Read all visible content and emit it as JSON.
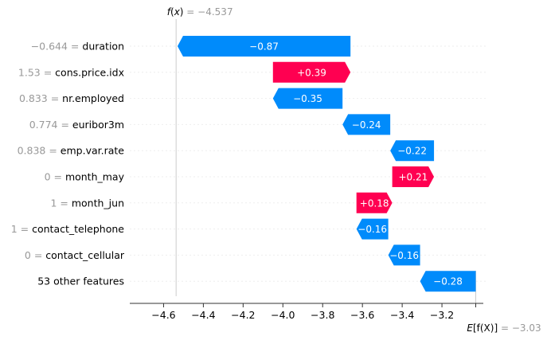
{
  "chart_data": {
    "type": "waterfall",
    "fx": {
      "prefix": "f",
      "arg": "x",
      "rest": " = −4.537",
      "value": -4.537
    },
    "efx": {
      "prefix": "E",
      "inner": "[f(X)]",
      "rest": " = −3.03",
      "value": -3.03
    },
    "rows": [
      {
        "value_label": "−0.644 = ",
        "feature": "duration",
        "contribution": -0.87,
        "contribution_label": "−0.87",
        "start": -3.66
      },
      {
        "value_label": "1.53 = ",
        "feature": "cons.price.idx",
        "contribution": 0.39,
        "contribution_label": "+0.39",
        "start": -4.05
      },
      {
        "value_label": "0.833 = ",
        "feature": "nr.employed",
        "contribution": -0.35,
        "contribution_label": "−0.35",
        "start": -3.7
      },
      {
        "value_label": "0.774 = ",
        "feature": "euribor3m",
        "contribution": -0.24,
        "contribution_label": "−0.24",
        "start": -3.46
      },
      {
        "value_label": "0.838 = ",
        "feature": "emp.var.rate",
        "contribution": -0.22,
        "contribution_label": "−0.22",
        "start": -3.24
      },
      {
        "value_label": "0 = ",
        "feature": "month_may",
        "contribution": 0.21,
        "contribution_label": "+0.21",
        "start": -3.45
      },
      {
        "value_label": "1 = ",
        "feature": "month_jun",
        "contribution": 0.18,
        "contribution_label": "+0.18",
        "start": -3.63
      },
      {
        "value_label": "1 = ",
        "feature": "contact_telephone",
        "contribution": -0.16,
        "contribution_label": "−0.16",
        "start": -3.47
      },
      {
        "value_label": "0 = ",
        "feature": "contact_cellular",
        "contribution": -0.16,
        "contribution_label": "−0.16",
        "start": -3.31
      },
      {
        "value_label": "",
        "feature": "53 other features",
        "contribution": -0.28,
        "contribution_label": "−0.28",
        "start": -3.03
      }
    ],
    "x_ticks": [
      -4.6,
      -4.4,
      -4.2,
      -4.0,
      -3.8,
      -3.6,
      -3.4,
      -3.2
    ],
    "x_tick_labels": [
      "−4.6",
      "−4.4",
      "−4.2",
      "−4.0",
      "−3.8",
      "−3.6",
      "−3.4",
      "−3.2"
    ],
    "xlim": [
      -4.77,
      -2.98
    ],
    "colors": {
      "positive": "#ff0051",
      "negative": "#008bfb",
      "grid": "#cccccc",
      "axis": "#333333",
      "muted": "#999999"
    }
  }
}
